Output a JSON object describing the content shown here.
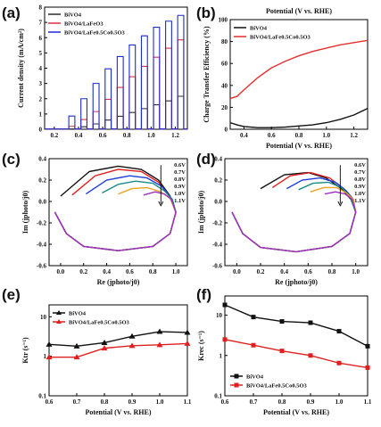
{
  "chart_data": [
    {
      "panel": "(a)",
      "type": "line",
      "ylabel": "Current density (mA/cm²)",
      "xticks": [
        "0.2",
        "0.4",
        "0.6",
        "0.8",
        "1.0",
        "1.2"
      ],
      "yticks": [
        "0",
        "1",
        "2",
        "3",
        "4",
        "5",
        "6",
        "7",
        "8"
      ],
      "xlim": [
        0.12,
        1.3
      ],
      "ylim": [
        0,
        8
      ],
      "note": "chopped-light LSV: dark current ~0, light pulses every 0.05 V",
      "series": [
        {
          "name": "BiVO4",
          "color": "#2b2b2b",
          "light_start": 0.35,
          "x": [
            0.35,
            0.5,
            0.7,
            0.9,
            1.1,
            1.3
          ],
          "y": [
            0.05,
            0.3,
            0.8,
            1.3,
            1.8,
            2.4
          ]
        },
        {
          "name": "BiVO4/LaFeO3",
          "color": "#e0303a",
          "light_start": 0.3,
          "x": [
            0.3,
            0.5,
            0.7,
            0.9,
            1.1,
            1.3
          ],
          "y": [
            0.1,
            1.0,
            2.6,
            4.0,
            5.2,
            6.3
          ]
        },
        {
          "name": "BiVO4/LaFe0.5Co0.5O3",
          "color": "#1e2bd0",
          "light_start": 0.25,
          "x": [
            0.25,
            0.4,
            0.6,
            0.8,
            1.0,
            1.2,
            1.3
          ],
          "y": [
            0.05,
            1.8,
            3.8,
            5.4,
            6.6,
            7.4,
            7.7
          ]
        }
      ],
      "legend_position": "top-left"
    },
    {
      "panel": "(b)",
      "type": "line",
      "title": "Potential (V vs. RHE)",
      "xlabel": "Potential (V vs. RHE)",
      "ylabel": "Charge Transfer Efficiency (%)",
      "xticks": [
        "0.4",
        "0.6",
        "0.8",
        "1.0",
        "1.2"
      ],
      "yticks": [
        "0",
        "20",
        "40",
        "60",
        "80",
        "100"
      ],
      "xlim": [
        0.3,
        1.3
      ],
      "ylim": [
        0,
        100
      ],
      "series": [
        {
          "name": "BiVO4",
          "color": "#111111",
          "x": [
            0.3,
            0.35,
            0.4,
            0.5,
            0.6,
            0.7,
            0.8,
            0.9,
            1.0,
            1.1,
            1.2,
            1.3
          ],
          "y": [
            6,
            4,
            2.5,
            1.5,
            1.5,
            2,
            3,
            4,
            6,
            9,
            13,
            19
          ]
        },
        {
          "name": "BiVO4/LaFe0.5Co0.5O3",
          "color": "#e33030",
          "x": [
            0.3,
            0.35,
            0.4,
            0.5,
            0.6,
            0.7,
            0.8,
            0.9,
            1.0,
            1.1,
            1.2,
            1.3
          ],
          "y": [
            28,
            30,
            36,
            47,
            56,
            62,
            67,
            71,
            74,
            77,
            79,
            81
          ]
        }
      ],
      "legend_position": "top-left"
    },
    {
      "panel": "(c)",
      "type": "line",
      "xlabel": "Re (jphoto/j0)",
      "ylabel": "Im (jphoto/j0)",
      "xticks": [
        "0.0",
        "0.2",
        "0.4",
        "0.6",
        "0.8",
        "1.0"
      ],
      "yticks": [
        "-0.6",
        "-0.4",
        "-0.2",
        "0.0",
        "0.2",
        "0.4"
      ],
      "xlim": [
        -0.1,
        1.1
      ],
      "ylim": [
        -0.6,
        0.4
      ],
      "labels": [
        "0.6V",
        "0.7V",
        "0.8V",
        "0.9V",
        "1.0V",
        "1.1V"
      ],
      "series": [
        {
          "name": "0.6V",
          "color": "#111111",
          "x": [
            0.0,
            0.25,
            0.5,
            0.7,
            0.85,
            0.95,
            1.0,
            0.95,
            0.8,
            0.5,
            0.2,
            0.05,
            -0.05
          ],
          "y": [
            0.05,
            0.28,
            0.33,
            0.3,
            0.2,
            0.05,
            -0.1,
            -0.3,
            -0.42,
            -0.46,
            -0.42,
            -0.3,
            -0.1
          ]
        },
        {
          "name": "0.7V",
          "color": "#e02020",
          "x": [
            0.1,
            0.3,
            0.5,
            0.7,
            0.85,
            0.95,
            1.0,
            0.95,
            0.8,
            0.5,
            0.2,
            0.05,
            -0.05
          ],
          "y": [
            0.06,
            0.24,
            0.3,
            0.28,
            0.18,
            0.04,
            -0.1,
            -0.3,
            -0.42,
            -0.46,
            -0.42,
            -0.3,
            -0.1
          ]
        },
        {
          "name": "0.8V",
          "color": "#1f3fd8",
          "x": [
            0.22,
            0.4,
            0.6,
            0.75,
            0.88,
            0.96,
            1.0,
            0.95,
            0.8,
            0.5,
            0.2,
            0.05,
            -0.05
          ],
          "y": [
            0.07,
            0.2,
            0.24,
            0.22,
            0.14,
            0.03,
            -0.1,
            -0.3,
            -0.42,
            -0.46,
            -0.42,
            -0.3,
            -0.1
          ]
        },
        {
          "name": "0.9V",
          "color": "#1a8a8a",
          "x": [
            0.36,
            0.5,
            0.65,
            0.8,
            0.9,
            0.97,
            1.0,
            0.95,
            0.8,
            0.5,
            0.2,
            0.05,
            -0.05
          ],
          "y": [
            0.08,
            0.16,
            0.19,
            0.17,
            0.1,
            0.02,
            -0.1,
            -0.3,
            -0.42,
            -0.46,
            -0.42,
            -0.3,
            -0.1
          ]
        },
        {
          "name": "1.0V",
          "color": "#f0a020",
          "x": [
            0.5,
            0.62,
            0.75,
            0.87,
            0.95,
            1.0,
            0.95,
            0.8,
            0.5,
            0.2,
            0.05,
            -0.05
          ],
          "y": [
            0.07,
            0.12,
            0.13,
            0.09,
            0.03,
            -0.1,
            -0.3,
            -0.42,
            -0.46,
            -0.42,
            -0.3,
            -0.1
          ]
        },
        {
          "name": "1.1V",
          "color": "#9a30c0",
          "x": [
            0.72,
            0.82,
            0.9,
            0.96,
            1.0,
            0.95,
            0.8,
            0.5,
            0.2,
            0.05,
            -0.05
          ],
          "y": [
            0.06,
            0.09,
            0.07,
            0.02,
            -0.1,
            -0.3,
            -0.42,
            -0.46,
            -0.42,
            -0.3,
            -0.1
          ]
        }
      ]
    },
    {
      "panel": "(d)",
      "type": "line",
      "xlabel": "Re (jphoto/j0)",
      "ylabel": "Im (jphoto/j0)",
      "xticks": [
        "0.0",
        "0.2",
        "0.4",
        "0.6",
        "0.8",
        "1.0"
      ],
      "yticks": [
        "-0.6",
        "-0.4",
        "-0.2",
        "0.0",
        "0.2",
        "0.4"
      ],
      "xlim": [
        -0.1,
        1.1
      ],
      "ylim": [
        -0.6,
        0.4
      ],
      "labels": [
        "0.6V",
        "0.7V",
        "0.8V",
        "0.9V",
        "1.0V",
        "1.1V"
      ],
      "series": [
        {
          "name": "0.6V",
          "color": "#111111",
          "x": [
            0.2,
            0.4,
            0.6,
            0.75,
            0.88,
            0.96,
            1.0,
            0.95,
            0.8,
            0.5,
            0.2,
            0.05,
            -0.04
          ],
          "y": [
            0.12,
            0.25,
            0.27,
            0.22,
            0.12,
            0.02,
            -0.1,
            -0.3,
            -0.42,
            -0.47,
            -0.43,
            -0.3,
            -0.1
          ]
        },
        {
          "name": "0.7V",
          "color": "#e02020",
          "x": [
            0.3,
            0.45,
            0.62,
            0.78,
            0.9,
            0.97,
            1.0,
            0.95,
            0.8,
            0.5,
            0.2,
            0.05,
            -0.04
          ],
          "y": [
            0.13,
            0.24,
            0.27,
            0.22,
            0.12,
            0.02,
            -0.1,
            -0.3,
            -0.42,
            -0.47,
            -0.43,
            -0.3,
            -0.1
          ]
        },
        {
          "name": "0.8V",
          "color": "#1f3fd8",
          "x": [
            0.42,
            0.55,
            0.7,
            0.83,
            0.92,
            0.98,
            1.0,
            0.95,
            0.8,
            0.5,
            0.2,
            0.05,
            -0.04
          ],
          "y": [
            0.12,
            0.2,
            0.22,
            0.18,
            0.1,
            0.02,
            -0.1,
            -0.3,
            -0.42,
            -0.47,
            -0.43,
            -0.3,
            -0.1
          ]
        },
        {
          "name": "0.9V",
          "color": "#1a8a8a",
          "x": [
            0.52,
            0.64,
            0.77,
            0.88,
            0.95,
            1.0,
            0.95,
            0.8,
            0.5,
            0.2,
            0.05,
            -0.04
          ],
          "y": [
            0.11,
            0.17,
            0.18,
            0.13,
            0.05,
            -0.1,
            -0.3,
            -0.42,
            -0.47,
            -0.43,
            -0.3,
            -0.1
          ]
        },
        {
          "name": "1.0V",
          "color": "#f0a020",
          "x": [
            0.62,
            0.73,
            0.84,
            0.92,
            0.98,
            1.0,
            0.95,
            0.8,
            0.5,
            0.2,
            0.05,
            -0.04
          ],
          "y": [
            0.09,
            0.13,
            0.13,
            0.08,
            0.02,
            -0.1,
            -0.3,
            -0.42,
            -0.47,
            -0.43,
            -0.3,
            -0.1
          ]
        },
        {
          "name": "1.1V",
          "color": "#9a30c0",
          "x": [
            0.74,
            0.83,
            0.91,
            0.97,
            1.0,
            0.95,
            0.8,
            0.5,
            0.2,
            0.05,
            -0.04
          ],
          "y": [
            0.07,
            0.09,
            0.07,
            0.02,
            -0.1,
            -0.3,
            -0.42,
            -0.47,
            -0.43,
            -0.3,
            -0.1
          ]
        }
      ]
    },
    {
      "panel": "(e)",
      "type": "line",
      "xlabel": "Potential (V vs. RHE)",
      "ylabel": "Ktr (s⁻¹)",
      "yscale": "log",
      "xticks": [
        "0.6",
        "0.7",
        "0.8",
        "0.9",
        "1.0",
        "1.1"
      ],
      "yticks": [
        "0.1",
        "1",
        "10"
      ],
      "xlim": [
        0.6,
        1.1
      ],
      "ylim": [
        0.1,
        20
      ],
      "series": [
        {
          "name": "BiVO4",
          "color": "#111111",
          "marker": "triangle",
          "x": [
            0.6,
            0.7,
            0.8,
            0.9,
            1.0,
            1.1
          ],
          "y": [
            2.0,
            1.8,
            2.2,
            3.2,
            4.2,
            4.0
          ]
        },
        {
          "name": "BiVO4/LaFe0.5Co0.5O3",
          "color": "#e02020",
          "marker": "triangle",
          "x": [
            0.6,
            0.7,
            0.8,
            0.9,
            1.0,
            1.1
          ],
          "y": [
            0.95,
            0.95,
            1.6,
            1.85,
            1.95,
            2.1
          ]
        }
      ],
      "legend_position": "top-left"
    },
    {
      "panel": "(f)",
      "type": "line",
      "xlabel": "Potential (V vs. RHE)",
      "ylabel": "Krec (s⁻¹)",
      "yscale": "log",
      "xticks": [
        "0.6",
        "0.7",
        "0.8",
        "0.9",
        "1.0",
        "1.1"
      ],
      "yticks": [
        "0.1",
        "1",
        "10"
      ],
      "xlim": [
        0.6,
        1.1
      ],
      "ylim": [
        0.1,
        30
      ],
      "series": [
        {
          "name": "BiVO4",
          "color": "#111111",
          "marker": "square",
          "x": [
            0.6,
            0.7,
            0.8,
            0.9,
            1.0,
            1.1
          ],
          "y": [
            18,
            9,
            7,
            6.5,
            4,
            1.7
          ]
        },
        {
          "name": "BiVO4/LaFe0.5Co0.5O3",
          "color": "#e02020",
          "marker": "square",
          "x": [
            0.6,
            0.7,
            0.8,
            0.9,
            1.0,
            1.1
          ],
          "y": [
            2.5,
            1.8,
            1.3,
            1.0,
            0.65,
            0.5
          ]
        }
      ],
      "legend_position": "bottom-left"
    }
  ]
}
